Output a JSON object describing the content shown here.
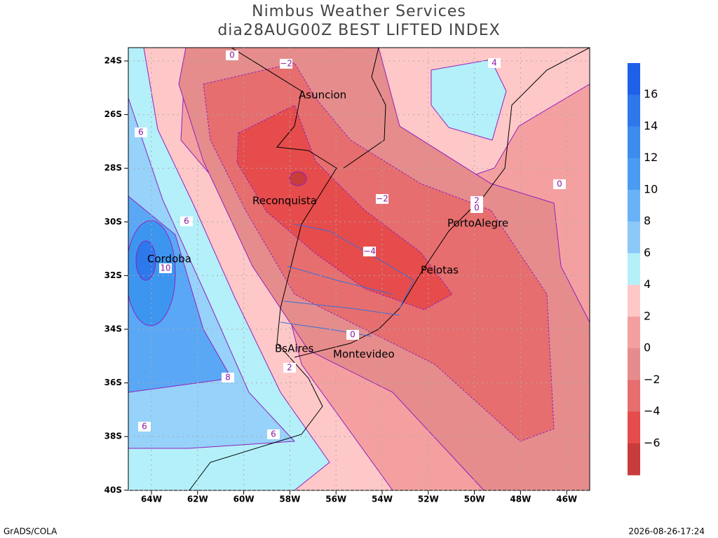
{
  "header": {
    "title": "Nimbus Weather Services",
    "subtitle": "dia28AUG00Z BEST LIFTED INDEX"
  },
  "lat_labels": [
    "24S",
    "26S",
    "28S",
    "30S",
    "32S",
    "34S",
    "36S",
    "38S",
    "40S"
  ],
  "lon_labels": [
    "64W",
    "62W",
    "60W",
    "58W",
    "56W",
    "54W",
    "52W",
    "50W",
    "48W",
    "46W"
  ],
  "cities": [
    "Asuncion",
    "Reconquista",
    "PortoAlegre",
    "Cordoba",
    "Pelotas",
    "BsAires",
    "Montevideo"
  ],
  "contour_labels": [
    "0",
    "−2",
    "4",
    "6",
    "−2",
    "2",
    "0",
    "0",
    "6",
    "−4",
    "10",
    "0",
    "2",
    "8",
    "6",
    "6"
  ],
  "colorbar_labels": [
    "16",
    "14",
    "12",
    "10",
    "8",
    "6",
    "4",
    "2",
    "0",
    "−2",
    "−4",
    "−6"
  ],
  "footer": {
    "left": "GrADS/COLA",
    "right": "2026-08-26-17:24"
  }
}
